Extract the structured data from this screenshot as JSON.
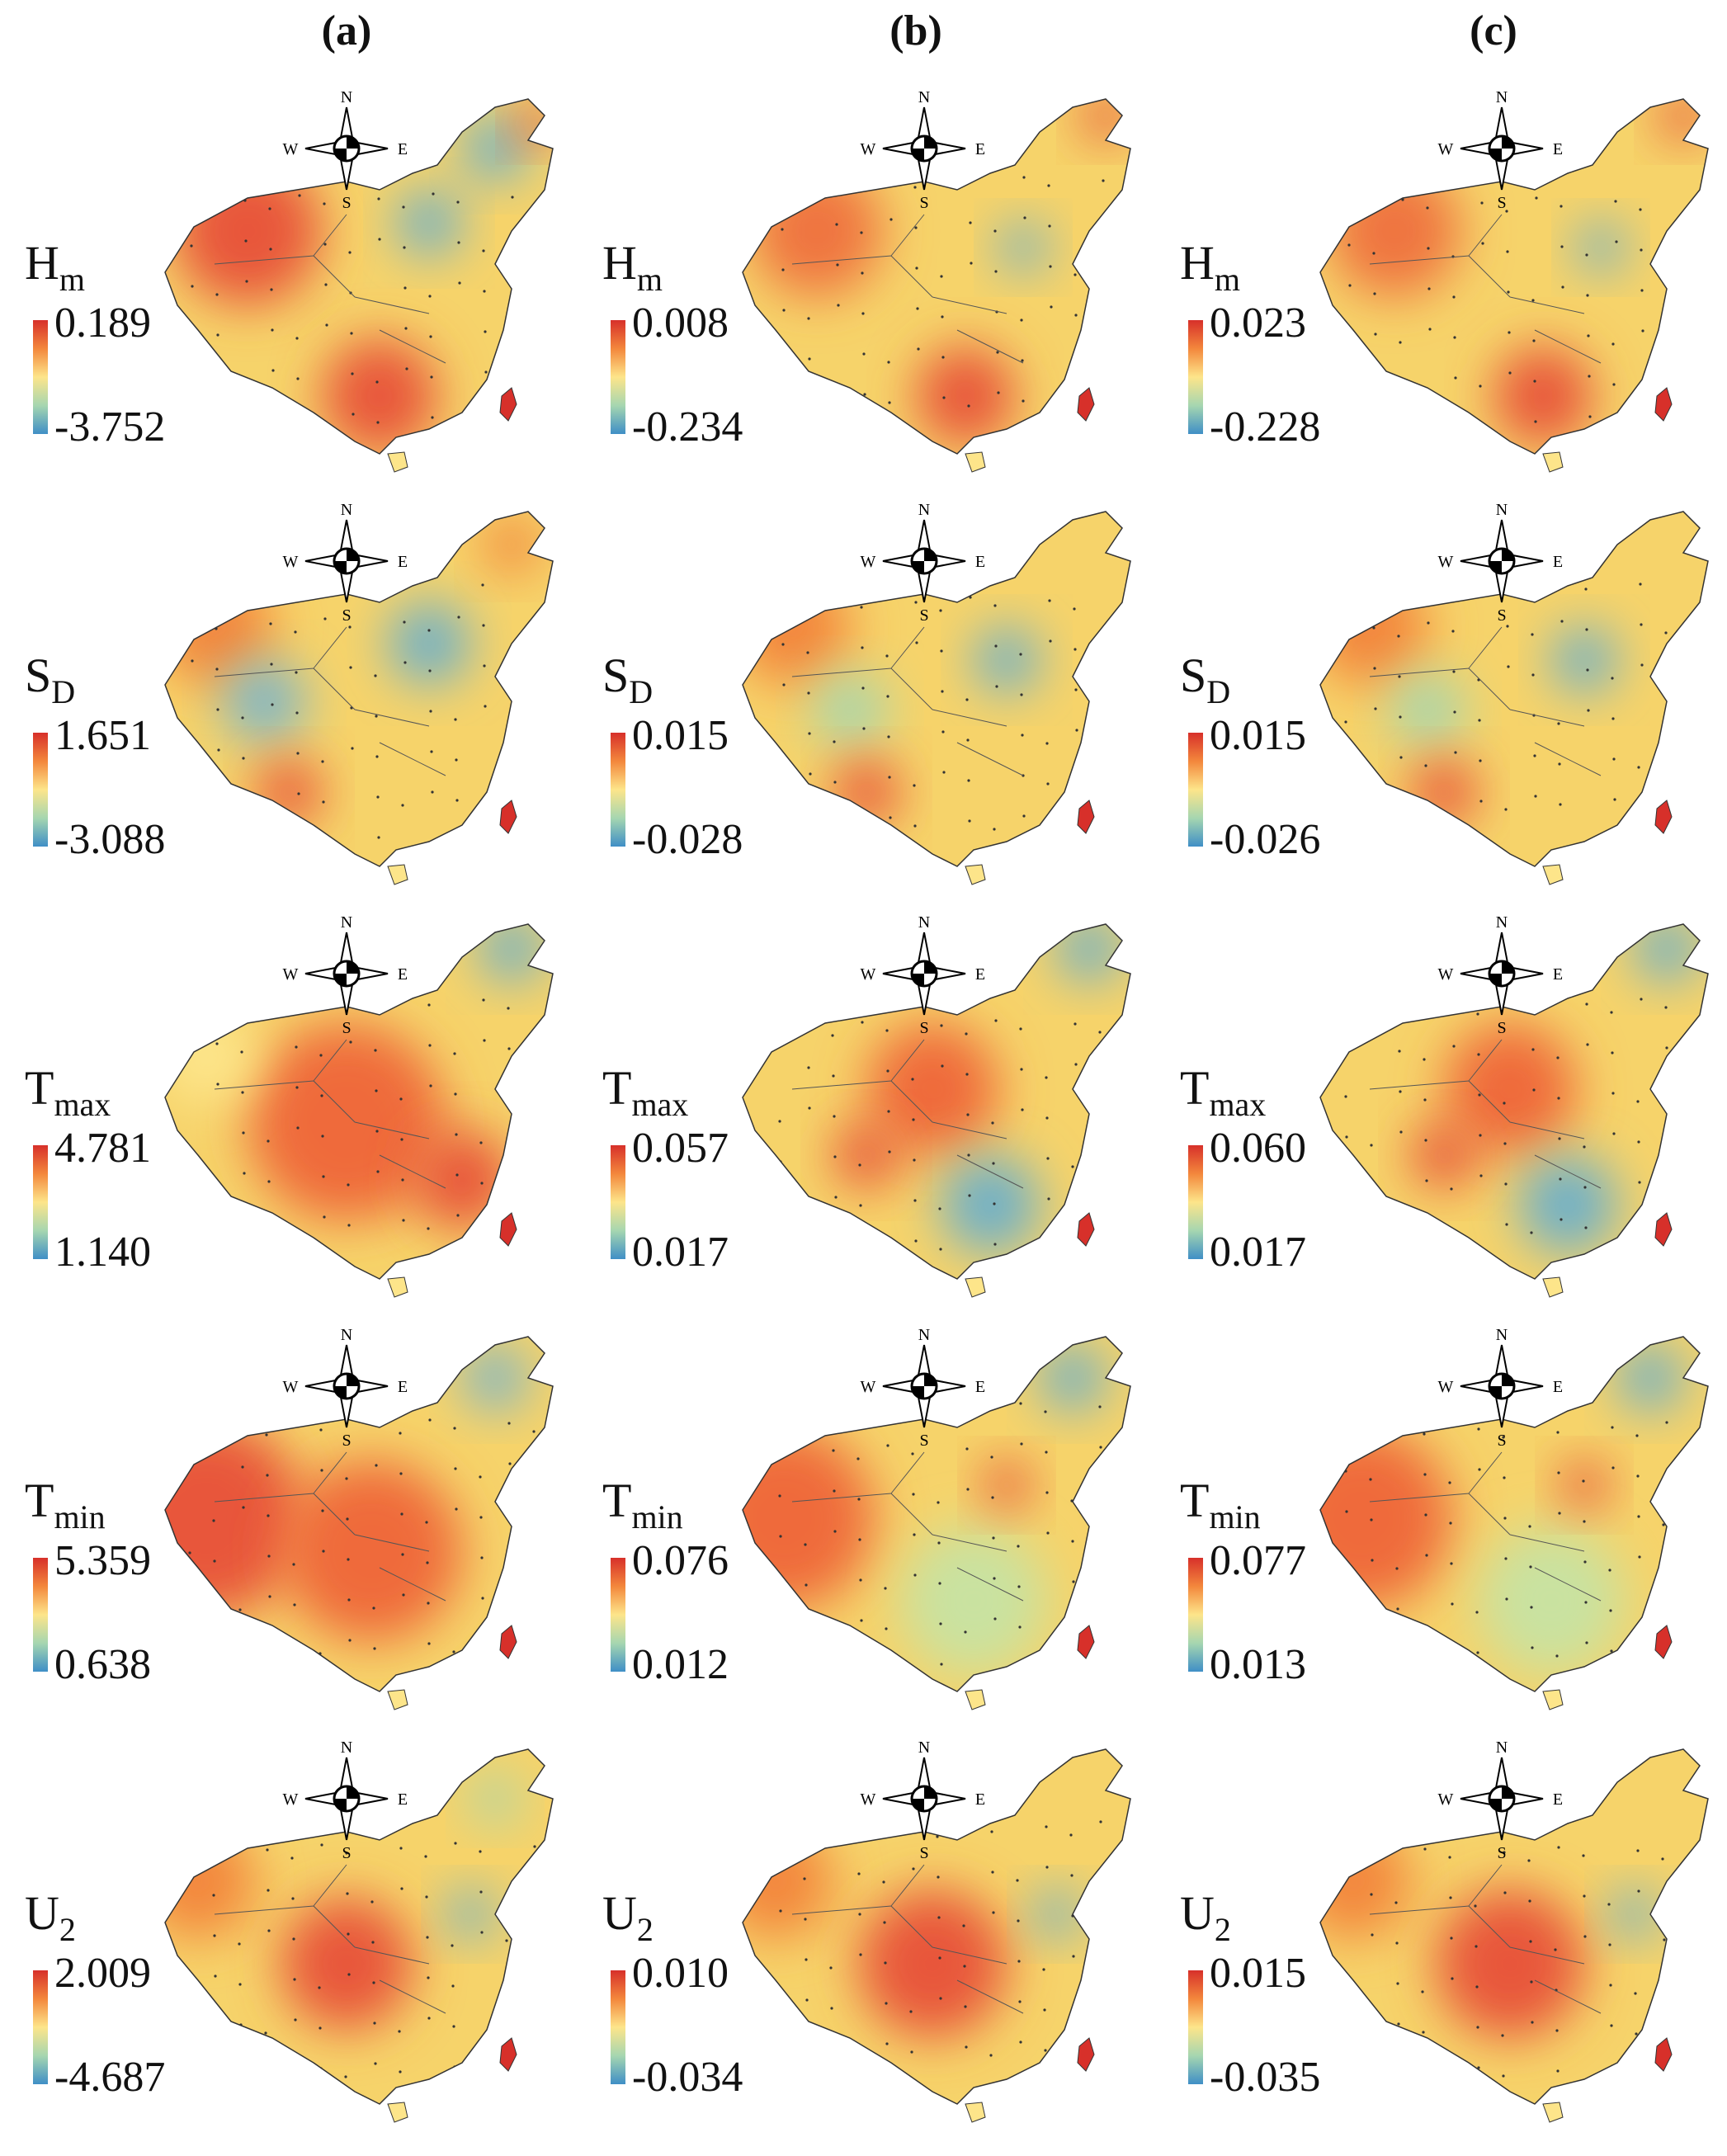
{
  "columns": [
    "(a)",
    "(b)",
    "(c)"
  ],
  "compass": {
    "n": "N",
    "s": "S",
    "e": "E",
    "w": "W"
  },
  "rows": [
    {
      "var": "H",
      "sub": "m",
      "ranges": [
        [
          "0.189",
          "-3.752"
        ],
        [
          "0.008",
          "-0.234"
        ],
        [
          "0.023",
          "-0.228"
        ]
      ]
    },
    {
      "var": "S",
      "sub": "D",
      "ranges": [
        [
          "1.651",
          "-3.088"
        ],
        [
          "0.015",
          "-0.028"
        ],
        [
          "0.015",
          "-0.026"
        ]
      ]
    },
    {
      "var": "T",
      "sub": "max",
      "ranges": [
        [
          "4.781",
          "1.140"
        ],
        [
          "0.057",
          "0.017"
        ],
        [
          "0.060",
          "0.017"
        ]
      ]
    },
    {
      "var": "T",
      "sub": "min",
      "ranges": [
        [
          "5.359",
          "0.638"
        ],
        [
          "0.076",
          "0.012"
        ],
        [
          "0.077",
          "0.013"
        ]
      ]
    },
    {
      "var": "U",
      "sub": "2",
      "ranges": [
        [
          "2.009",
          "-4.687"
        ],
        [
          "0.010",
          "-0.034"
        ],
        [
          "0.015",
          "-0.035"
        ]
      ]
    }
  ],
  "colors": {
    "high": "#d7302a",
    "mid": "#fde58a",
    "low": "#3f8fc6"
  }
}
